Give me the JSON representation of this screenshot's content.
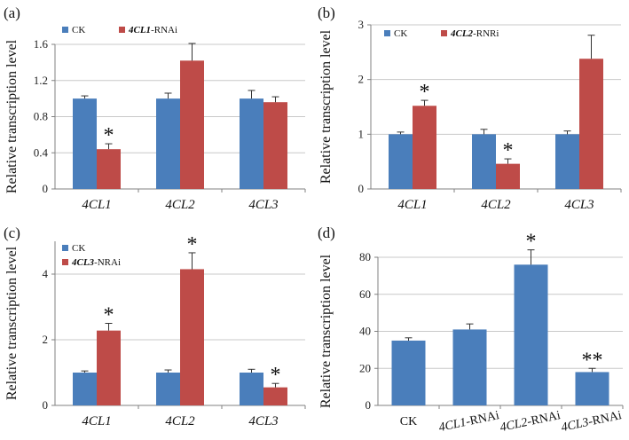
{
  "colors": {
    "ck": "#4a7ebb",
    "rnai": "#be4b48",
    "axis": "#808080",
    "grid": "#c8c8c8",
    "error": "#333333"
  },
  "chart_data": [
    {
      "type": "bar",
      "panel_label": "(a)",
      "ylabel": "Relative transcription level",
      "ylim": [
        0,
        1.6
      ],
      "yticks": [
        "0",
        "0.4",
        "0.8",
        "1.2",
        "1.6"
      ],
      "ytick_values": [
        0,
        0.4,
        0.8,
        1.2,
        1.6
      ],
      "grid": true,
      "legend_position": "top-left",
      "categories": [
        "4CL1",
        "4CL2",
        "4CL3"
      ],
      "series": [
        {
          "name": "CK",
          "values": [
            1.0,
            1.0,
            1.0
          ],
          "errors": [
            0.03,
            0.06,
            0.09
          ],
          "color_key": "ck"
        },
        {
          "name": "4CL1-RNAi",
          "name_italic": "4CL1",
          "name_suffix": "-RNAi",
          "values": [
            0.44,
            1.42,
            0.96
          ],
          "errors": [
            0.06,
            0.19,
            0.06
          ],
          "color_key": "rnai"
        }
      ],
      "annotations": [
        {
          "series": 1,
          "index": 0,
          "text": "*"
        }
      ]
    },
    {
      "type": "bar",
      "panel_label": "(b)",
      "ylabel": "Relative transcription level",
      "ylim": [
        0,
        3
      ],
      "yticks": [
        "0",
        "1",
        "2",
        "3"
      ],
      "ytick_values": [
        0,
        1,
        2,
        3
      ],
      "grid": true,
      "legend_position": "top-left",
      "categories": [
        "4CL1",
        "4CL2",
        "4CL3"
      ],
      "series": [
        {
          "name": "CK",
          "values": [
            1.0,
            1.0,
            1.0
          ],
          "errors": [
            0.04,
            0.09,
            0.06
          ],
          "color_key": "ck"
        },
        {
          "name": "4CL2-RNRi",
          "name_italic": "4CL2",
          "name_suffix": "-RNRi",
          "values": [
            1.52,
            0.46,
            2.38
          ],
          "errors": [
            0.1,
            0.09,
            0.43
          ],
          "color_key": "rnai"
        }
      ],
      "annotations": [
        {
          "series": 1,
          "index": 0,
          "text": "*"
        },
        {
          "series": 1,
          "index": 1,
          "text": "*"
        }
      ]
    },
    {
      "type": "bar",
      "panel_label": "(c)",
      "ylabel": "Relative transcription level",
      "ylim": [
        0,
        5
      ],
      "yticks": [
        "0",
        "2",
        "4"
      ],
      "ytick_values": [
        0,
        2,
        4
      ],
      "grid": true,
      "legend_position": "top-left",
      "categories": [
        "4CL1",
        "4CL2",
        "4CL3"
      ],
      "series": [
        {
          "name": "CK",
          "values": [
            1.0,
            1.0,
            1.0
          ],
          "errors": [
            0.05,
            0.08,
            0.1
          ],
          "color_key": "ck"
        },
        {
          "name": "4CL3-NRAi",
          "name_italic": "4CL3",
          "name_suffix": "-NRAi",
          "values": [
            2.28,
            4.15,
            0.55
          ],
          "errors": [
            0.22,
            0.5,
            0.12
          ],
          "color_key": "rnai"
        }
      ],
      "annotations": [
        {
          "series": 1,
          "index": 0,
          "text": "*"
        },
        {
          "series": 1,
          "index": 1,
          "text": "*"
        },
        {
          "series": 1,
          "index": 2,
          "text": "*"
        }
      ]
    },
    {
      "type": "bar",
      "panel_label": "(d)",
      "ylabel": "Relative transcription level",
      "ylim": [
        0,
        80
      ],
      "yticks": [
        "0",
        "20",
        "40",
        "60",
        "80"
      ],
      "ytick_values": [
        0,
        20,
        40,
        60,
        80
      ],
      "grid": true,
      "legend_position": "none",
      "categories": [
        "CK",
        "4CL1-RNAi",
        "4CL2-RNAi",
        "4CL3-RNAi"
      ],
      "category_italic": [
        "",
        "4CL1",
        "4CL2",
        "4CL3"
      ],
      "category_suffix": [
        "",
        "-RNAi",
        "-RNAi",
        "-RNAi"
      ],
      "series": [
        {
          "name": "Relative transcription level",
          "values": [
            35,
            41,
            76,
            18
          ],
          "errors": [
            1.5,
            3,
            8,
            2
          ],
          "color_key": "ck"
        }
      ],
      "annotations": [
        {
          "series": 0,
          "index": 2,
          "text": "*"
        },
        {
          "series": 0,
          "index": 3,
          "text": "**"
        }
      ]
    }
  ]
}
